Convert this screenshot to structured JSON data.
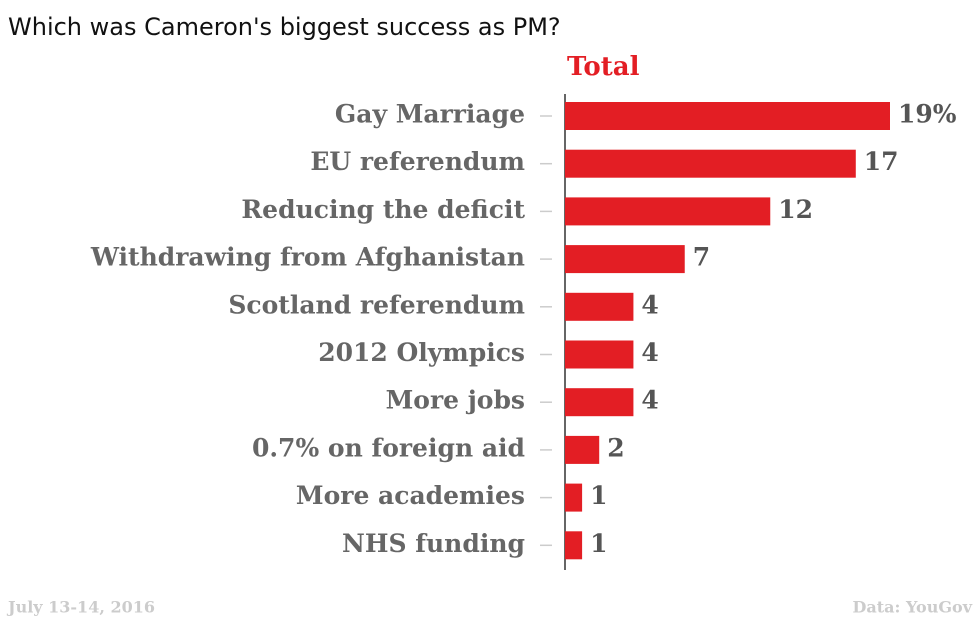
{
  "chart_data": {
    "type": "bar",
    "orientation": "horizontal",
    "title": "Which was Cameron's biggest success as PM?",
    "categories": [
      "Gay Marriage",
      "EU referendum",
      "Reducing the deficit",
      "Withdrawing from Afghanistan",
      "Scotland referendum",
      "2012 Olympics",
      "More jobs",
      "0.7% on foreign aid",
      "More academies",
      "NHS funding"
    ],
    "series": [
      {
        "name": "Total",
        "color": "#e31e24",
        "values": [
          19,
          17,
          12,
          7,
          4,
          4,
          4,
          2,
          1,
          1
        ],
        "value_labels": [
          "19%",
          "17",
          "12",
          "7",
          "4",
          "4",
          "4",
          "2",
          "1",
          "1"
        ]
      }
    ],
    "date_note": "July 13-14, 2016",
    "source": "Data: YouGov"
  }
}
